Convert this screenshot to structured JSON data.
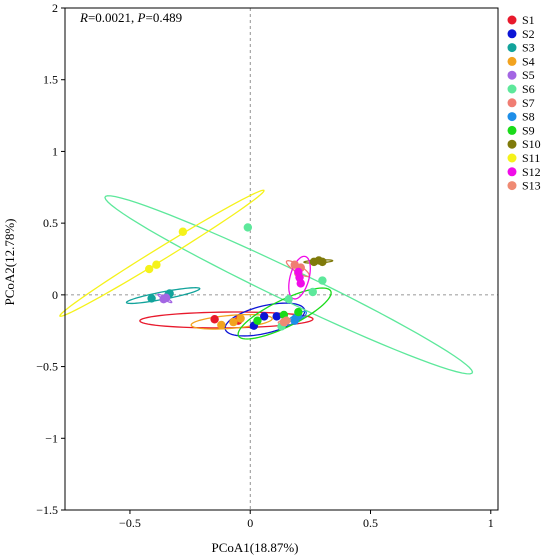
{
  "chart_data": {
    "type": "scatter",
    "annotation": {
      "R_label": "R",
      "R_value": "=0.0021, ",
      "P_label": "P",
      "P_value": "=0.489"
    },
    "xlabel": "PCoA1(18.87%)",
    "ylabel": "PCoA2(12.78%)",
    "xlim": [
      -0.77,
      1.03
    ],
    "ylim": [
      -1.5,
      2.0
    ],
    "xticks": [
      -0.5,
      0,
      0.5,
      1
    ],
    "xtick_labels": [
      "−0.5",
      "0",
      "0.5",
      "1"
    ],
    "yticks": [
      -1.5,
      -1,
      -0.5,
      0,
      0.5,
      1,
      1.5,
      2
    ],
    "ytick_labels": [
      "−1.5",
      "−1",
      "−0.5",
      "0",
      "0.5",
      "1",
      "1.5",
      "2"
    ],
    "reference_lines": {
      "x": 0,
      "y": 0,
      "style": "dashed"
    },
    "legend_position": "right",
    "series": [
      {
        "name": "S1",
        "color": "#e8192c",
        "points": [
          [
            -0.148,
            -0.17
          ],
          [
            -0.05,
            -0.18
          ],
          [
            -0.045,
            -0.17
          ]
        ],
        "ellipse": {
          "cx": -0.099,
          "cy": -0.175,
          "rx": 0.36,
          "ry": 0.055,
          "angle": 1.0
        }
      },
      {
        "name": "S2",
        "color": "#0c15d6",
        "points": [
          [
            0.015,
            -0.215
          ],
          [
            0.058,
            -0.15
          ],
          [
            0.11,
            -0.15
          ]
        ],
        "ellipse": {
          "cx": 0.061,
          "cy": -0.172,
          "rx": 0.18,
          "ry": 0.09,
          "angle": 27.0
        }
      },
      {
        "name": "S3",
        "color": "#12a39b",
        "points": [
          [
            -0.41,
            -0.025
          ],
          [
            -0.335,
            0.01
          ],
          [
            -0.34,
            -0.0
          ]
        ],
        "ellipse": {
          "cx": -0.362,
          "cy": -0.005,
          "rx": 0.16,
          "ry": 0.025,
          "angle": 18.0
        }
      },
      {
        "name": "S4",
        "color": "#f2a31f",
        "points": [
          [
            -0.12,
            -0.21
          ],
          [
            -0.07,
            -0.19
          ],
          [
            -0.04,
            -0.165
          ]
        ],
        "ellipse": {
          "cx": -0.077,
          "cy": -0.188,
          "rx": 0.17,
          "ry": 0.045,
          "angle": 8.0
        }
      },
      {
        "name": "S5",
        "color": "#a366e3",
        "points": [
          [
            -0.36,
            -0.03
          ],
          [
            -0.35,
            -0.02
          ]
        ],
        "ellipse": {
          "cx": -0.355,
          "cy": -0.025,
          "rx": 0.04,
          "ry": 0.008,
          "angle": -45.0
        }
      },
      {
        "name": "S6",
        "color": "#5de89b",
        "points": [
          [
            -0.01,
            0.47
          ],
          [
            0.3,
            0.1
          ],
          [
            0.26,
            0.02
          ],
          [
            0.16,
            -0.03
          ],
          [
            0.13,
            -0.22
          ]
        ],
        "ellipse": {
          "cx": 0.16,
          "cy": 0.07,
          "rx": 0.98,
          "ry": 0.095,
          "angle": -39.0
        }
      },
      {
        "name": "S7",
        "color": "#f07d73",
        "points": [
          [
            0.185,
            0.21
          ],
          [
            0.21,
            0.19
          ],
          [
            0.2,
            0.15
          ]
        ],
        "ellipse": {
          "cx": 0.198,
          "cy": 0.183,
          "rx": 0.07,
          "ry": 0.02,
          "angle": -50.0
        }
      },
      {
        "name": "S8",
        "color": "#1e8ee8",
        "points": [
          [
            0.185,
            -0.18
          ],
          [
            0.19,
            -0.16
          ],
          [
            0.2,
            -0.15
          ]
        ],
        "ellipse": {
          "cx": 0.192,
          "cy": -0.163,
          "rx": 0.06,
          "ry": 0.02,
          "angle": 50.0
        }
      },
      {
        "name": "S9",
        "color": "#1adb1a",
        "points": [
          [
            0.03,
            -0.18
          ],
          [
            0.14,
            -0.14
          ],
          [
            0.2,
            -0.12
          ]
        ],
        "ellipse": {
          "cx": 0.143,
          "cy": -0.13,
          "rx": 0.25,
          "ry": 0.08,
          "angle": 42.0
        }
      },
      {
        "name": "S10",
        "color": "#7f7a0a",
        "points": [
          [
            0.265,
            0.23
          ],
          [
            0.285,
            0.24
          ],
          [
            0.3,
            0.23
          ]
        ],
        "ellipse": {
          "cx": 0.283,
          "cy": 0.233,
          "rx": 0.06,
          "ry": 0.01,
          "angle": 5.0
        }
      },
      {
        "name": "S11",
        "color": "#f5f21a",
        "points": [
          [
            -0.42,
            0.18
          ],
          [
            -0.39,
            0.21
          ],
          [
            -0.28,
            0.44
          ]
        ],
        "ellipse": {
          "cx": -0.367,
          "cy": 0.29,
          "rx": 0.61,
          "ry": 0.035,
          "angle": 46.0
        }
      },
      {
        "name": "S12",
        "color": "#f00ce8",
        "points": [
          [
            0.2,
            0.16
          ],
          [
            0.205,
            0.12
          ],
          [
            0.21,
            0.08
          ]
        ],
        "ellipse": {
          "cx": 0.205,
          "cy": 0.12,
          "rx": 0.15,
          "ry": 0.04,
          "angle": 82.0
        }
      },
      {
        "name": "S13",
        "color": "#ef8a73",
        "points": [
          [
            0.15,
            -0.18
          ],
          [
            0.14,
            -0.19
          ]
        ],
        "ellipse": {
          "cx": 0.145,
          "cy": -0.185,
          "rx": 0.03,
          "ry": 0.012,
          "angle": 20.0
        }
      }
    ]
  }
}
